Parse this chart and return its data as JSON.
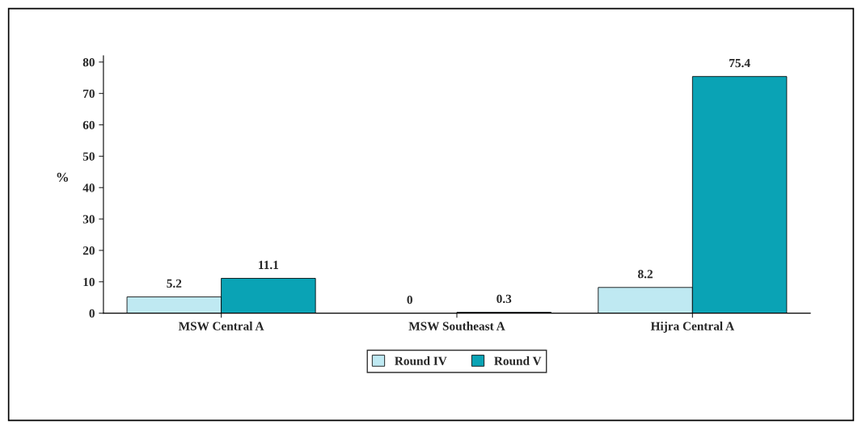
{
  "chart_data": {
    "type": "bar",
    "ylabel": "%",
    "categories": [
      "MSW Central A",
      "MSW Southeast A",
      "Hijra Central A"
    ],
    "series": [
      {
        "name": "Round IV",
        "color": "#bfe9f2",
        "values": [
          5.2,
          0,
          8.2
        ]
      },
      {
        "name": "Round V",
        "color": "#0aa3b5",
        "values": [
          11.1,
          0.3,
          75.4
        ]
      }
    ],
    "ylim": [
      0,
      82
    ],
    "yticks": [
      0,
      10,
      20,
      30,
      40,
      50,
      60,
      70,
      80
    ],
    "data_labels": true,
    "legend": "bottom",
    "grid": false
  }
}
